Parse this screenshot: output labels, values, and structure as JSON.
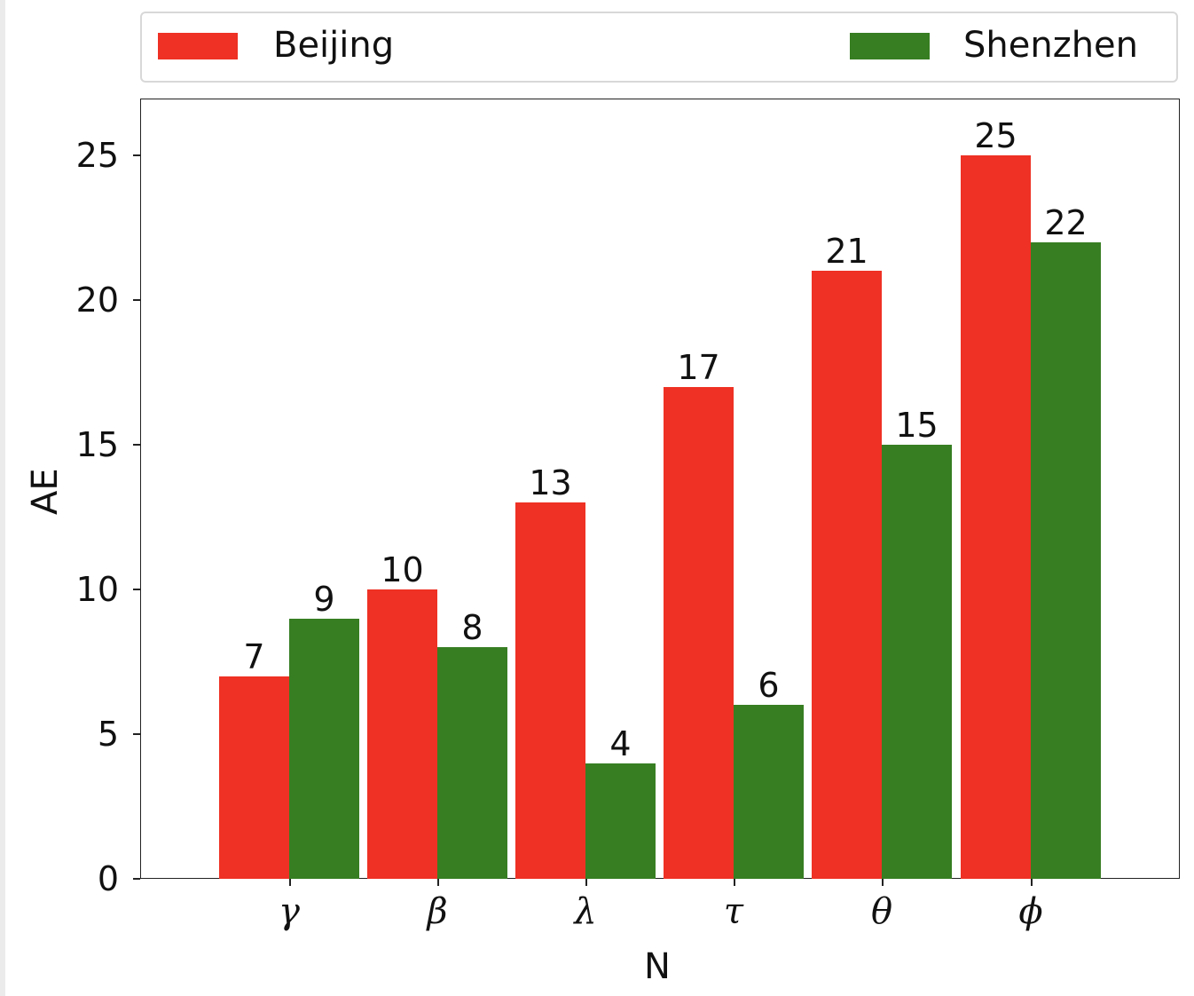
{
  "chart_data": {
    "type": "bar",
    "title": "",
    "xlabel": "N",
    "ylabel": "AE",
    "categories": [
      "γ",
      "β",
      "λ",
      "τ",
      "θ",
      "ϕ"
    ],
    "series": [
      {
        "name": "Beijing",
        "color": "#ee3124",
        "values": [
          7,
          10,
          13,
          17,
          21,
          25
        ]
      },
      {
        "name": "Shenzhen",
        "color": "#377e22",
        "values": [
          9,
          8,
          4,
          6,
          15,
          22
        ]
      }
    ],
    "ylim": [
      0,
      27
    ],
    "yticks": [
      0,
      5,
      10,
      15,
      20,
      25
    ],
    "grid": false,
    "legend_position": "top, above plot, expanded"
  },
  "legend": {
    "items": [
      {
        "label": "Beijing",
        "color": "#ee3124"
      },
      {
        "label": "Shenzhen",
        "color": "#377e22"
      }
    ]
  },
  "axes": {
    "xlabel": "N",
    "ylabel": "AE",
    "ytick_labels": [
      "0",
      "5",
      "10",
      "15",
      "20",
      "25"
    ],
    "xtick_labels": [
      "γ",
      "β",
      "λ",
      "τ",
      "θ",
      "ϕ"
    ]
  }
}
